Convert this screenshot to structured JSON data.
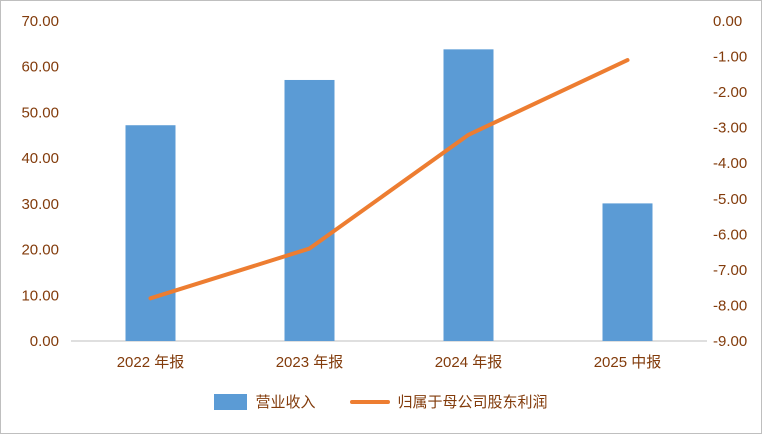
{
  "chart_data": {
    "type": "combo_bar_line",
    "title": "",
    "categories": [
      "2022 年报",
      "2023 年报",
      "2024 年报",
      "2025 中报"
    ],
    "series": [
      {
        "name": "营业收入",
        "type": "bar",
        "axis": "left",
        "values": [
          47.2,
          57.1,
          63.8,
          30.1
        ],
        "color": "#5B9BD5"
      },
      {
        "name": "归属于母公司股东利润",
        "type": "line",
        "axis": "right",
        "values": [
          -7.8,
          -6.4,
          -3.2,
          -1.1
        ],
        "color": "#ED7D31"
      }
    ],
    "left_axis": {
      "min": 0,
      "max": 70,
      "tick_values": [
        0,
        10,
        20,
        30,
        40,
        50,
        60,
        70
      ],
      "tick_labels": [
        "0.00",
        "10.00",
        "20.00",
        "30.00",
        "40.00",
        "50.00",
        "60.00",
        "70.00"
      ]
    },
    "right_axis": {
      "min": -9,
      "max": 0,
      "tick_values": [
        0,
        -1,
        -2,
        -3,
        -4,
        -5,
        -6,
        -7,
        -8,
        -9
      ],
      "tick_labels": [
        "0.00",
        "-1.00",
        "-2.00",
        "-3.00",
        "-4.00",
        "-5.00",
        "-6.00",
        "-7.00",
        "-8.00",
        "-9.00"
      ]
    },
    "grid": false,
    "legend_position": "bottom",
    "text_color": "#823B0B",
    "axis_line_color": "#BFBFBF",
    "background": "#FFFFFF"
  }
}
